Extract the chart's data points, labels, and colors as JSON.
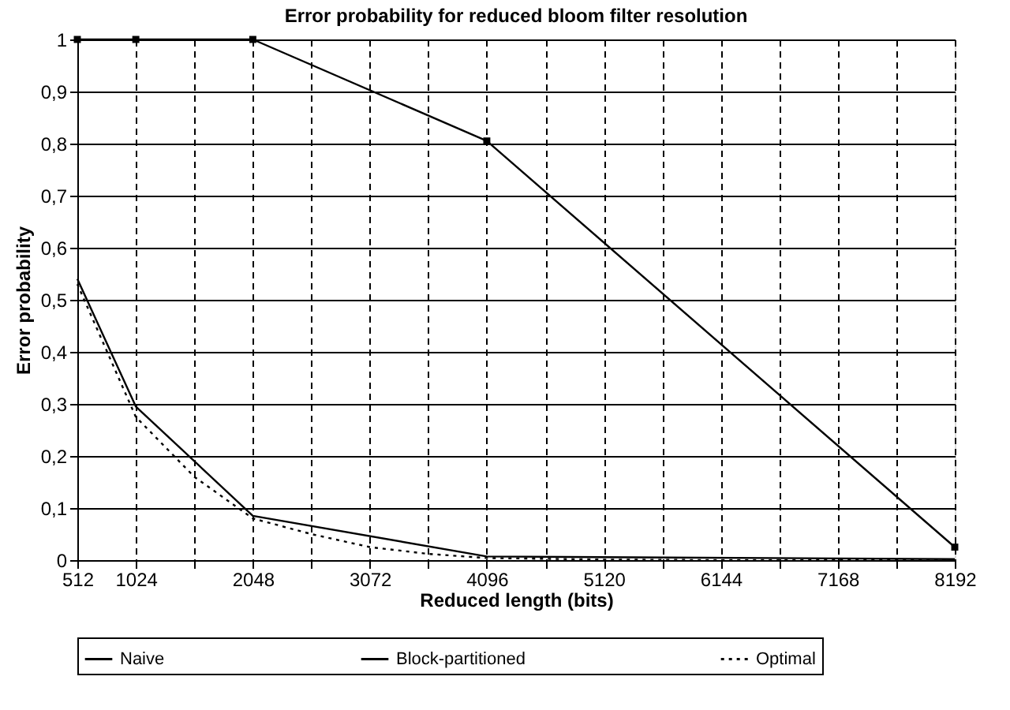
{
  "chart_data": {
    "type": "line",
    "title": "Error probability for reduced bloom filter resolution",
    "xlabel": "Reduced length (bits)",
    "ylabel": "Error probability",
    "xlim": [
      512,
      8192
    ],
    "xticks": [
      512,
      1024,
      {
        "value": 1536,
        "label": null
      },
      2048,
      {
        "value": 2560,
        "label": null
      },
      3072,
      {
        "value": 3584,
        "label": null
      },
      4096,
      {
        "value": 4608,
        "label": null
      },
      5120,
      {
        "value": 5632,
        "label": null
      },
      6144,
      {
        "value": 6656,
        "label": null
      },
      7168,
      {
        "value": 7680,
        "label": null
      },
      8192
    ],
    "ylim": [
      0,
      1
    ],
    "yticks": [
      0,
      {
        "value": 0.1,
        "label": "0,1"
      },
      {
        "value": 0.2,
        "label": "0,2"
      },
      {
        "value": 0.3,
        "label": "0,3"
      },
      {
        "value": 0.4,
        "label": "0,4"
      },
      {
        "value": 0.5,
        "label": "0,5"
      },
      {
        "value": 0.6,
        "label": "0,6"
      },
      {
        "value": 0.7,
        "label": "0,7"
      },
      {
        "value": 0.8,
        "label": "0,8"
      },
      {
        "value": 0.9,
        "label": "0,9"
      },
      1
    ],
    "grid": true,
    "legend": "bottom",
    "series": [
      {
        "name": "Naive",
        "color": "#000000",
        "marker": "square",
        "line_style": "solid",
        "x": [
          512,
          1024,
          2048,
          4096,
          8192
        ],
        "values": [
          1,
          1,
          1,
          0.805,
          0.025
        ]
      },
      {
        "name": "Block-partitioned",
        "color": "#000000",
        "marker": "none",
        "line_style": "solid",
        "x": [
          512,
          1024,
          2048,
          4096,
          8192
        ],
        "values": [
          0.54,
          0.295,
          0.085,
          0.007,
          0.002
        ]
      },
      {
        "name": "Optimal",
        "color": "#000000",
        "marker": "none",
        "line_style": "dotted",
        "x": [
          512,
          1024,
          1536,
          2048,
          2560,
          3072,
          3584,
          4096,
          5120,
          6144,
          7168,
          8192
        ],
        "values": [
          0.53,
          0.275,
          0.16,
          0.08,
          0.05,
          0.025,
          0.012,
          0.004,
          0.001,
          0,
          0,
          0
        ]
      }
    ]
  }
}
